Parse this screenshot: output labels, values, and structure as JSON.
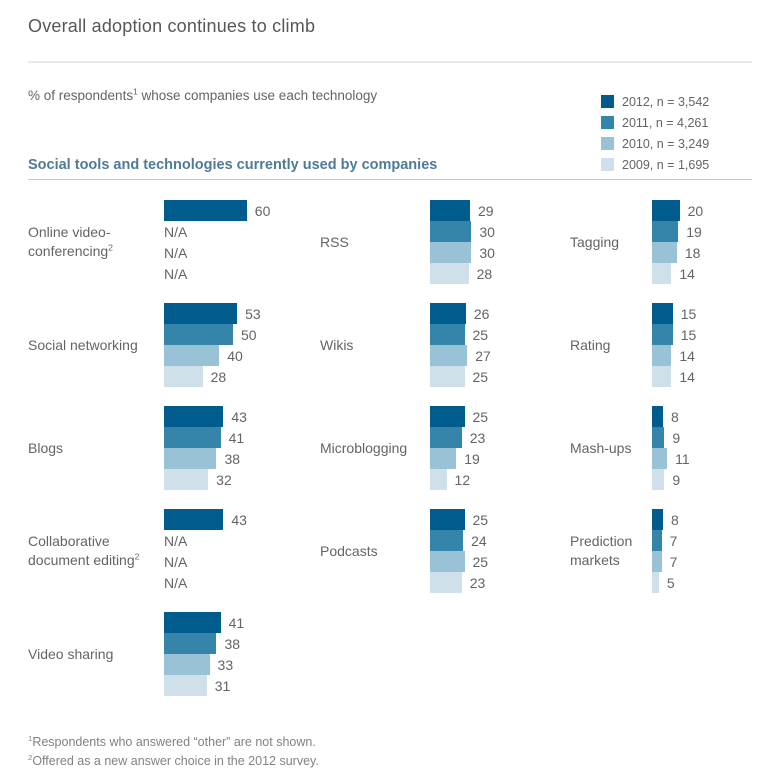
{
  "page": {
    "title": "Overall adoption continues to climb",
    "subtitle": {
      "text": "% of respondents",
      "sup": "1",
      "rest": " whose companies use each technology"
    },
    "section_header": "Social tools and technologies currently used by companies"
  },
  "legend": {
    "items": [
      {
        "label": "2012, n = 3,542",
        "color": "#005C8C"
      },
      {
        "label": "2011, n = 4,261",
        "color": "#3585AB"
      },
      {
        "label": "2010, n = 3,249",
        "color": "#99C2D6"
      },
      {
        "label": "2009, n = 1,695",
        "color": "#CFE0EB"
      }
    ]
  },
  "footnotes": [
    {
      "sup": "1",
      "text": "Respondents who answered “other” are not shown."
    },
    {
      "sup": "2",
      "text": "Offered as a new answer choice in the 2012 survey."
    }
  ],
  "chart_data": {
    "type": "bar",
    "orientation": "horizontal",
    "title": "Social tools and technologies currently used by companies",
    "unit": "% of respondents whose companies use each technology",
    "series_labels": [
      "2012",
      "2011",
      "2010",
      "2009"
    ],
    "series_colors": [
      "#005C8C",
      "#3585AB",
      "#99C2D6",
      "#CFE0EB"
    ],
    "na_label": "N/A",
    "xlim": [
      0,
      65
    ],
    "grid": false,
    "legend_position": "top-right",
    "groups": [
      {
        "label": "Online video-conferencing",
        "footnote_sup": "2",
        "column": 0,
        "row": 0,
        "values": [
          60,
          null,
          null,
          null
        ]
      },
      {
        "label": "Social networking",
        "footnote_sup": "",
        "column": 0,
        "row": 1,
        "values": [
          53,
          50,
          40,
          28
        ]
      },
      {
        "label": "Blogs",
        "footnote_sup": "",
        "column": 0,
        "row": 2,
        "values": [
          43,
          41,
          38,
          32
        ]
      },
      {
        "label": "Collaborative document editing",
        "footnote_sup": "2",
        "column": 0,
        "row": 3,
        "values": [
          43,
          null,
          null,
          null
        ]
      },
      {
        "label": "Video sharing",
        "footnote_sup": "",
        "column": 0,
        "row": 4,
        "values": [
          41,
          38,
          33,
          31
        ]
      },
      {
        "label": "RSS",
        "footnote_sup": "",
        "column": 1,
        "row": 0,
        "values": [
          29,
          30,
          30,
          28
        ]
      },
      {
        "label": "Wikis",
        "footnote_sup": "",
        "column": 1,
        "row": 1,
        "values": [
          26,
          25,
          27,
          25
        ]
      },
      {
        "label": "Microblogging",
        "footnote_sup": "",
        "column": 1,
        "row": 2,
        "values": [
          25,
          23,
          19,
          12
        ]
      },
      {
        "label": "Podcasts",
        "footnote_sup": "",
        "column": 1,
        "row": 3,
        "values": [
          25,
          24,
          25,
          23
        ]
      },
      {
        "label": "Tagging",
        "footnote_sup": "",
        "column": 2,
        "row": 0,
        "values": [
          20,
          19,
          18,
          14
        ]
      },
      {
        "label": "Rating",
        "footnote_sup": "",
        "column": 2,
        "row": 1,
        "values": [
          15,
          15,
          14,
          14
        ]
      },
      {
        "label": "Mash-ups",
        "footnote_sup": "",
        "column": 2,
        "row": 2,
        "values": [
          8,
          9,
          11,
          9
        ]
      },
      {
        "label": "Prediction markets",
        "footnote_sup": "",
        "column": 2,
        "row": 3,
        "values": [
          8,
          7,
          7,
          5
        ]
      }
    ]
  }
}
